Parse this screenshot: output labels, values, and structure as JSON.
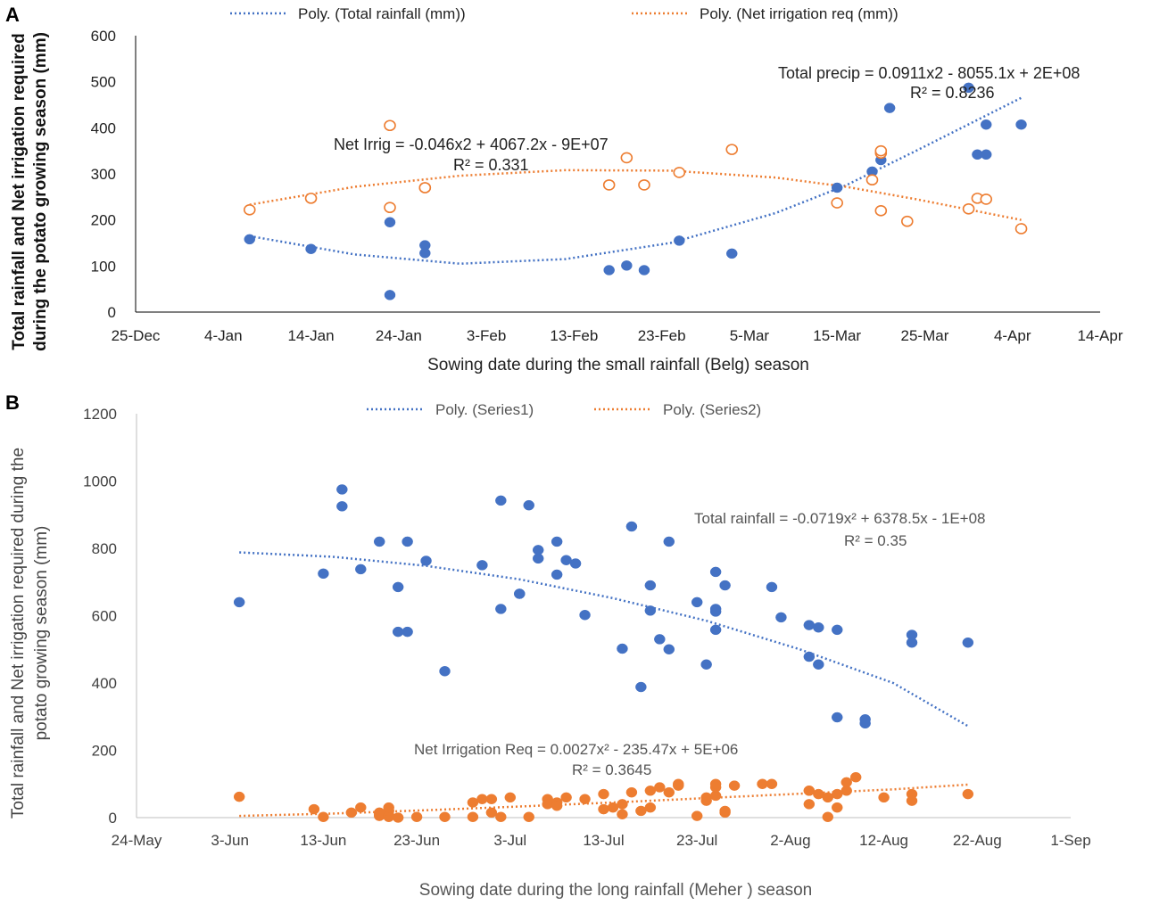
{
  "colors": {
    "blue": "#4472C4",
    "orange": "#ED7D31",
    "grid": "#BFBFBF",
    "axis": "#000000"
  },
  "chart_data": [
    {
      "panel": "A",
      "type": "scatter",
      "title": "",
      "xlabel": "Sowing date during the small rainfall (Belg) season",
      "ylabel_lines": [
        "Total rainfall and Net irrigation required",
        "during the potato growing season (mm)"
      ],
      "x_tick_labels": [
        "25-Dec",
        "4-Jan",
        "14-Jan",
        "24-Jan",
        "3-Feb",
        "13-Feb",
        "23-Feb",
        "5-Mar",
        "15-Mar",
        "25-Mar",
        "4-Apr",
        "14-Apr"
      ],
      "xlim_days": [
        0,
        110
      ],
      "ylim": [
        0,
        600
      ],
      "y_ticks": [
        0,
        100,
        200,
        300,
        400,
        500,
        600
      ],
      "legend": [
        "Poly. (Total rainfall (mm))",
        "Poly. (Net irrigation req (mm))"
      ],
      "annotations": [
        {
          "text": "Total precip = 0.0911x2 - 8055.1x + 2E+08",
          "series": "rain",
          "line": 1
        },
        {
          "text": "R² = 0.8236",
          "series": "rain",
          "line": 2
        },
        {
          "text": "Net Irrig = -0.046x2 + 4067.2x - 9E+07",
          "series": "irr",
          "line": 1
        },
        {
          "text": "R² = 0.331",
          "series": "irr",
          "line": 2
        }
      ],
      "series": [
        {
          "name": "Total rainfall (mm)",
          "marker": "filled",
          "color": "#4472C4",
          "x_days": [
            13,
            20,
            29,
            29,
            33,
            33,
            54,
            56,
            58,
            62,
            68,
            80,
            84,
            85,
            85,
            85,
            86,
            95,
            96,
            97,
            97,
            101
          ],
          "values": [
            158,
            137,
            195,
            37,
            145,
            128,
            91,
            101,
            91,
            155,
            127,
            270,
            305,
            330,
            345,
            349,
            443,
            487,
            342,
            342,
            407,
            407
          ]
        },
        {
          "name": "Net irrigation req (mm)",
          "marker": "hollow",
          "color": "#ED7D31",
          "x_days": [
            13,
            20,
            29,
            29,
            33,
            33,
            54,
            56,
            58,
            62,
            68,
            80,
            84,
            85,
            85,
            85,
            88,
            95,
            96,
            97,
            101
          ],
          "values": [
            222,
            247,
            405,
            227,
            270,
            270,
            276,
            335,
            276,
            303,
            353,
            237,
            287,
            220,
            345,
            350,
            197,
            224,
            247,
            245,
            181
          ]
        }
      ],
      "trendlines": [
        {
          "series": "Total rainfall (mm)",
          "x_days": [
            13,
            25,
            37,
            49,
            61,
            73,
            81,
            89,
            101
          ],
          "values": [
            165,
            125,
            105,
            115,
            150,
            215,
            275,
            350,
            465
          ]
        },
        {
          "series": "Net irrigation req (mm)",
          "x_days": [
            13,
            25,
            37,
            49,
            61,
            73,
            81,
            89,
            101
          ],
          "values": [
            233,
            272,
            296,
            308,
            307,
            292,
            272,
            245,
            200
          ]
        }
      ]
    },
    {
      "panel": "B",
      "type": "scatter",
      "title": "",
      "xlabel": "Sowing date during the long rainfall (Meher ) season",
      "ylabel_lines": [
        "Total rainfall and Net irrigation required during the",
        "potato growing season (mm)"
      ],
      "x_tick_labels": [
        "24-May",
        "3-Jun",
        "13-Jun",
        "23-Jun",
        "3-Jul",
        "13-Jul",
        "23-Jul",
        "2-Aug",
        "12-Aug",
        "22-Aug",
        "1-Sep"
      ],
      "xlim_days": [
        0,
        100
      ],
      "ylim": [
        0,
        1200
      ],
      "y_ticks": [
        0,
        200,
        400,
        600,
        800,
        1000,
        1200
      ],
      "legend": [
        "Poly. (Series1)",
        "Poly. (Series2)"
      ],
      "annotations": [
        {
          "text": "Total rainfall = -0.0719x² + 6378.5x - 1E+08",
          "series": "rain",
          "line": 1
        },
        {
          "text": "R² = 0.35",
          "series": "rain",
          "line": 2
        },
        {
          "text": "Net Irrigation Req = 0.0027x² - 235.47x + 5E+06",
          "series": "irr",
          "line": 1
        },
        {
          "text": "R² = 0.3645",
          "series": "irr",
          "line": 2
        }
      ],
      "series": [
        {
          "name": "Series1",
          "marker": "filled",
          "color": "#4472C4",
          "x_days": [
            11,
            20,
            22,
            22,
            24,
            26,
            28,
            28,
            29,
            29,
            31,
            33,
            37,
            39,
            39,
            41,
            41,
            42,
            43,
            43,
            45,
            45,
            46,
            47,
            48,
            52,
            53,
            54,
            55,
            55,
            56,
            57,
            57,
            60,
            61,
            62,
            62,
            62,
            62,
            63,
            68,
            69,
            72,
            72,
            73,
            73,
            75,
            75,
            78,
            78,
            83,
            83,
            89
          ],
          "values": [
            640,
            725,
            975,
            925,
            738,
            820,
            685,
            552,
            820,
            552,
            763,
            435,
            750,
            942,
            620,
            665,
            665,
            928,
            795,
            770,
            820,
            722,
            765,
            755,
            602,
            502,
            865,
            388,
            690,
            615,
            530,
            500,
            820,
            640,
            455,
            730,
            620,
            612,
            558,
            690,
            685,
            595,
            572,
            478,
            565,
            455,
            558,
            298,
            280,
            292,
            543,
            520,
            520
          ]
        },
        {
          "name": "Series2",
          "marker": "filled",
          "color": "#ED7D31",
          "x_days": [
            11,
            19,
            20,
            23,
            24,
            26,
            26,
            26,
            27,
            27,
            27,
            27,
            28,
            30,
            33,
            36,
            36,
            37,
            38,
            38,
            39,
            40,
            42,
            44,
            44,
            45,
            45,
            46,
            48,
            50,
            50,
            51,
            52,
            52,
            53,
            54,
            55,
            55,
            56,
            57,
            58,
            58,
            60,
            61,
            61,
            62,
            62,
            62,
            63,
            63,
            64,
            67,
            68,
            72,
            72,
            72,
            73,
            74,
            74,
            75,
            75,
            76,
            76,
            77,
            80,
            83,
            83,
            89
          ],
          "values": [
            62,
            25,
            2,
            15,
            30,
            5,
            10,
            15,
            2,
            8,
            20,
            30,
            0,
            2,
            2,
            45,
            2,
            55,
            55,
            15,
            2,
            60,
            2,
            55,
            40,
            45,
            35,
            60,
            55,
            25,
            70,
            30,
            40,
            10,
            75,
            20,
            30,
            80,
            90,
            75,
            95,
            100,
            5,
            50,
            60,
            65,
            90,
            100,
            15,
            20,
            95,
            100,
            100,
            40,
            80,
            80,
            70,
            2,
            60,
            30,
            70,
            105,
            80,
            120,
            60,
            70,
            50,
            70
          ]
        }
      ],
      "trendlines": [
        {
          "series": "Series1",
          "x_days": [
            11,
            21,
            31,
            41,
            51,
            61,
            71,
            81,
            89
          ],
          "values": [
            788,
            775,
            748,
            708,
            652,
            585,
            500,
            400,
            272
          ]
        },
        {
          "series": "Series2",
          "x_days": [
            11,
            21,
            31,
            41,
            51,
            61,
            71,
            81,
            89
          ],
          "values": [
            5,
            12,
            22,
            33,
            45,
            58,
            71,
            84,
            98
          ]
        }
      ]
    }
  ]
}
